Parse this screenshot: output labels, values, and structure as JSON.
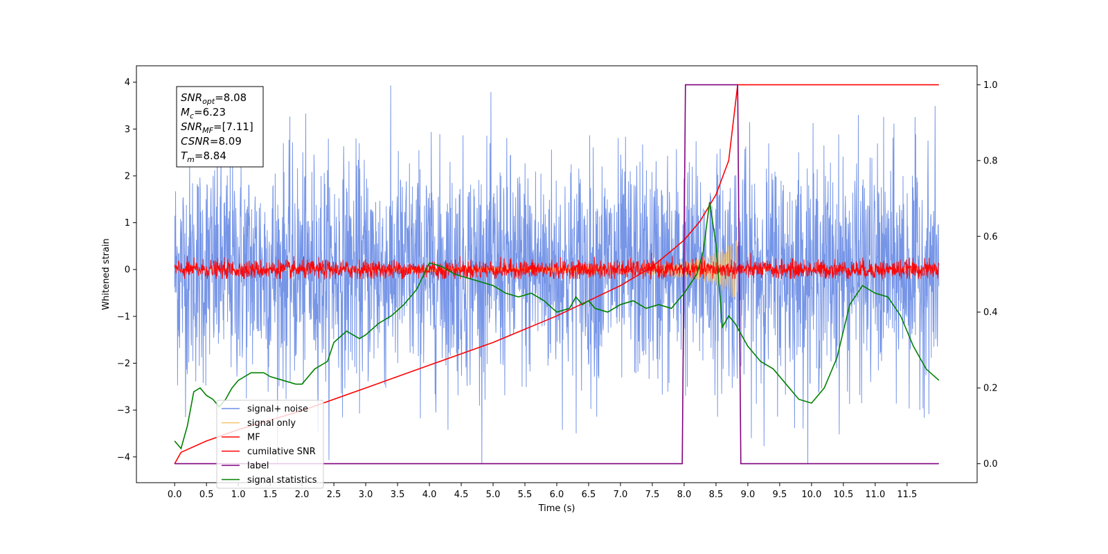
{
  "chart_data": {
    "type": "line",
    "xlabel": "Time (s)",
    "ylabel": "Whitened strain",
    "xlim": [
      -0.6,
      12.6
    ],
    "ylim": [
      -4.55,
      4.35
    ],
    "y2lim": [
      -0.05,
      1.05
    ],
    "x_ticks": [
      "0.0",
      "0.5",
      "1.0",
      "1.5",
      "2.0",
      "2.5",
      "3.0",
      "3.5",
      "4.0",
      "4.5",
      "5.0",
      "5.5",
      "6.0",
      "6.5",
      "7.0",
      "7.5",
      "8.0",
      "8.5",
      "9.0",
      "9.5",
      "10.0",
      "10.5",
      "11.0",
      "11.5"
    ],
    "y_ticks": [
      "4",
      "3",
      "2",
      "1",
      "0",
      "−1",
      "−2",
      "−3",
      "−4"
    ],
    "y2_ticks": [
      "1.0",
      "0.8",
      "0.6",
      "0.4",
      "0.2",
      "0.0"
    ],
    "grid": false,
    "legend_placement": "lower-left",
    "annotation": {
      "lines": [
        {
          "sym": "SNR",
          "sub": "opt",
          "val": "=8.08"
        },
        {
          "sym": "M",
          "sub": "c",
          "val": "=6.23"
        },
        {
          "sym": "SNR",
          "sub": "MF",
          "val": "=[7.11]"
        },
        {
          "sym": "CSNR",
          "sub": "",
          "val": "=8.09"
        },
        {
          "sym": "T",
          "sub": "m",
          "val": "=8.84"
        }
      ]
    },
    "series": [
      {
        "name": "signal+ noise",
        "color": "#6f8fe6",
        "axis": "left",
        "kind": "noise",
        "noise_sd": 1.2,
        "clip": [
          -4.15,
          3.95
        ]
      },
      {
        "name": "signal only",
        "color": "#f5c26b",
        "axis": "left",
        "kind": "chirp",
        "t_merge": 8.84,
        "envelope_x": [
          7.0,
          7.5,
          8.0,
          8.2,
          8.4,
          8.6,
          8.75,
          8.84
        ],
        "envelope_y": [
          0.08,
          0.12,
          0.18,
          0.22,
          0.3,
          0.45,
          0.6,
          0.72
        ]
      },
      {
        "name": "MF",
        "color": "#ff0000",
        "axis": "left",
        "kind": "noise",
        "noise_sd": 0.1,
        "clip": [
          -0.2,
          0.45
        ]
      },
      {
        "name": "cumilative SNR",
        "color": "#ff0000",
        "axis": "right",
        "x": [
          0.0,
          0.1,
          0.5,
          1.0,
          2.0,
          3.0,
          4.0,
          5.0,
          6.0,
          6.5,
          7.0,
          7.5,
          8.0,
          8.25,
          8.5,
          8.7,
          8.84,
          12.0
        ],
        "y": [
          0.0,
          0.03,
          0.06,
          0.09,
          0.14,
          0.2,
          0.26,
          0.32,
          0.39,
          0.43,
          0.47,
          0.52,
          0.59,
          0.64,
          0.71,
          0.8,
          1.0,
          1.0
        ]
      },
      {
        "name": "label",
        "color": "#800080",
        "axis": "right",
        "x": [
          0.0,
          7.97,
          8.02,
          8.84,
          8.89,
          12.0
        ],
        "y": [
          0.0,
          0.0,
          1.0,
          1.0,
          0.0,
          0.0
        ]
      },
      {
        "name": "signal statistics",
        "color": "#008000",
        "axis": "right",
        "x": [
          0.0,
          0.1,
          0.2,
          0.3,
          0.4,
          0.5,
          0.6,
          0.7,
          0.8,
          0.9,
          1.0,
          1.2,
          1.4,
          1.5,
          1.7,
          1.9,
          2.0,
          2.2,
          2.4,
          2.5,
          2.7,
          2.9,
          3.0,
          3.2,
          3.4,
          3.6,
          3.8,
          4.0,
          4.2,
          4.4,
          4.6,
          4.8,
          5.0,
          5.2,
          5.4,
          5.6,
          5.8,
          6.0,
          6.2,
          6.3,
          6.4,
          6.5,
          6.6,
          6.8,
          7.0,
          7.2,
          7.4,
          7.6,
          7.8,
          8.0,
          8.2,
          8.3,
          8.4,
          8.5,
          8.6,
          8.7,
          8.8,
          9.0,
          9.2,
          9.4,
          9.6,
          9.8,
          10.0,
          10.2,
          10.4,
          10.5,
          10.6,
          10.8,
          11.0,
          11.2,
          11.4,
          11.6,
          11.8,
          12.0
        ],
        "y": [
          0.06,
          0.04,
          0.1,
          0.19,
          0.2,
          0.18,
          0.17,
          0.15,
          0.17,
          0.2,
          0.22,
          0.24,
          0.24,
          0.23,
          0.22,
          0.21,
          0.21,
          0.25,
          0.27,
          0.32,
          0.35,
          0.33,
          0.34,
          0.37,
          0.39,
          0.42,
          0.46,
          0.53,
          0.52,
          0.5,
          0.49,
          0.48,
          0.47,
          0.45,
          0.44,
          0.45,
          0.43,
          0.4,
          0.41,
          0.44,
          0.42,
          0.43,
          0.41,
          0.4,
          0.42,
          0.43,
          0.41,
          0.42,
          0.41,
          0.45,
          0.5,
          0.56,
          0.69,
          0.58,
          0.36,
          0.39,
          0.37,
          0.31,
          0.27,
          0.25,
          0.21,
          0.17,
          0.16,
          0.2,
          0.28,
          0.35,
          0.42,
          0.47,
          0.45,
          0.44,
          0.39,
          0.31,
          0.25,
          0.22
        ]
      }
    ]
  }
}
